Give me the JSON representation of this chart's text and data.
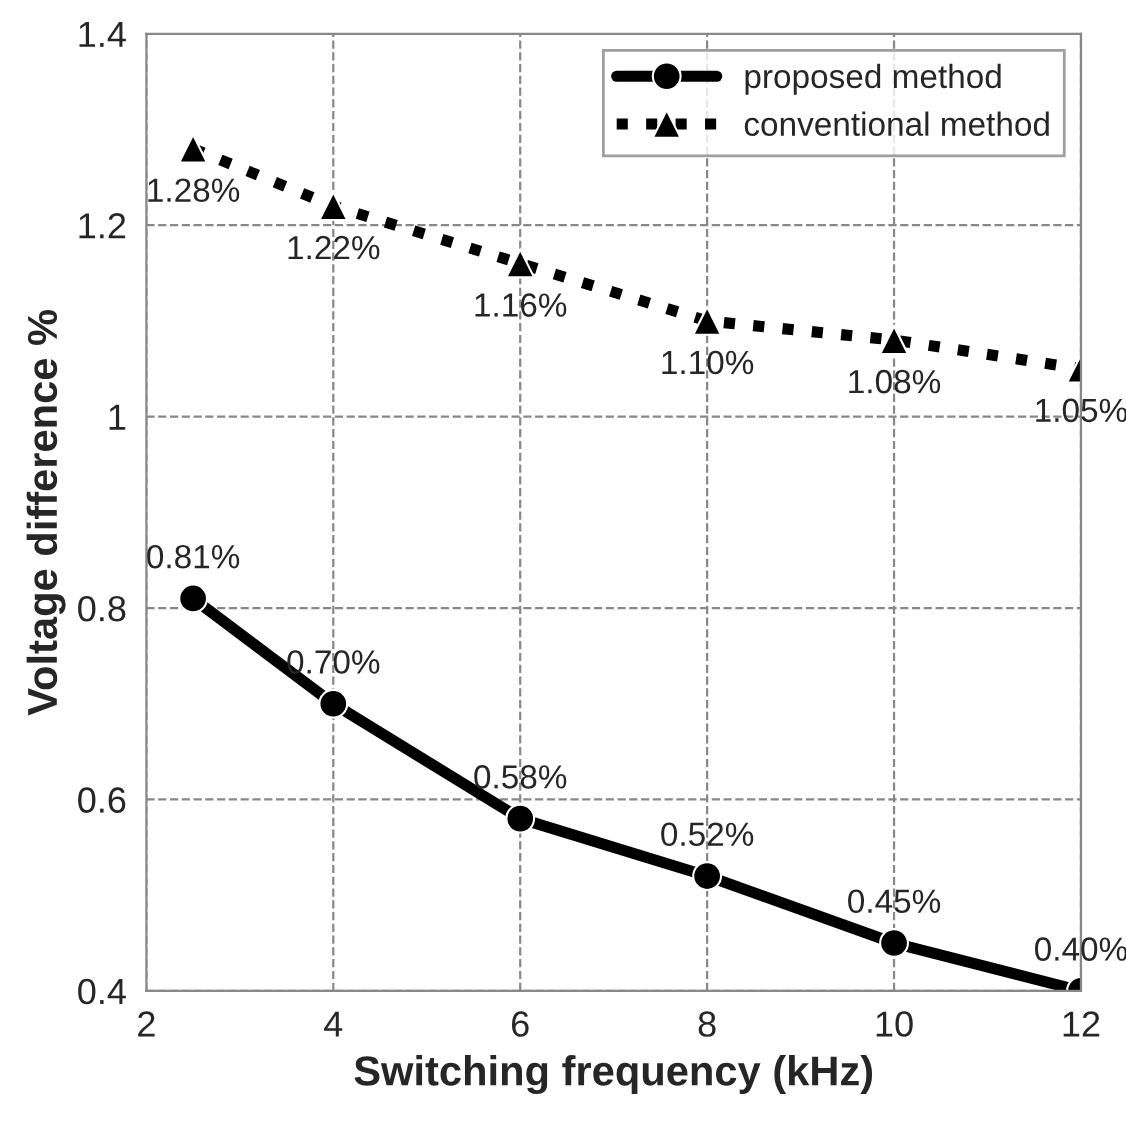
{
  "chart_data": {
    "type": "line",
    "xlabel": "Switching frequency (kHz)",
    "ylabel": "Voltage difference %",
    "xlim": [
      2,
      12
    ],
    "xticks": [
      2,
      4,
      6,
      8,
      10,
      12
    ],
    "ylim": [
      0.4,
      1.4
    ],
    "yticks": [
      0.4,
      0.6,
      0.8,
      1,
      1.2,
      1.4
    ],
    "grid": true,
    "legend": "top right",
    "series": [
      {
        "name": "proposed method",
        "color": "#000000",
        "x": [
          2.5,
          4,
          6,
          8,
          10,
          12
        ],
        "values": [
          0.81,
          0.7,
          0.58,
          0.52,
          0.45,
          0.4
        ],
        "value_labels": [
          "0.81%",
          "0.70%",
          "0.58%",
          "0.52%",
          "0.45%",
          "0.40%"
        ],
        "marker": "circle",
        "line_style": "solid"
      },
      {
        "name": "conventional method",
        "color": "#000000",
        "x": [
          2.5,
          4,
          6,
          8,
          10,
          12
        ],
        "values": [
          1.28,
          1.22,
          1.16,
          1.1,
          1.08,
          1.05
        ],
        "value_labels": [
          "1.28%",
          "1.22%",
          "1.16%",
          "1.10%",
          "1.08%",
          "1.05%"
        ],
        "marker": "triangle",
        "line_style": "dotted"
      }
    ]
  }
}
